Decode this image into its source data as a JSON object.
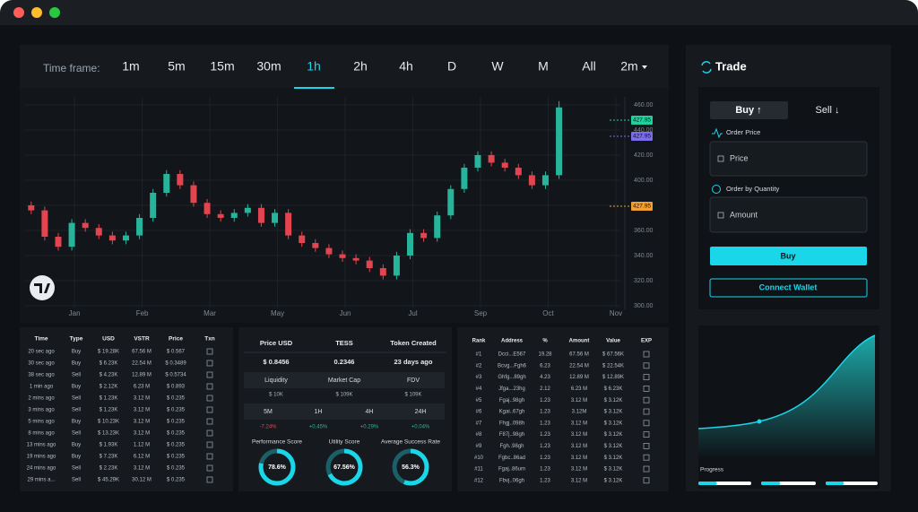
{
  "toolbar": {
    "label": "Time frame:",
    "timeframes": [
      "1m",
      "5m",
      "15m",
      "30m",
      "1h",
      "2h",
      "4h",
      "D",
      "W",
      "M",
      "All",
      "2m"
    ]
  },
  "chart_data": {
    "type": "candlestick",
    "x": [
      -0.64,
      -0.44,
      -0.24,
      -0.04,
      0.16,
      0.36,
      0.56,
      0.76,
      0.96,
      1.16,
      1.36,
      1.56,
      1.76,
      1.96,
      2.16,
      2.36,
      2.56,
      2.76,
      2.96,
      3.16,
      3.36,
      3.56,
      3.76,
      3.96,
      4.16,
      4.36,
      4.56,
      4.76,
      4.96,
      5.16,
      5.36,
      5.56,
      5.76,
      5.96,
      6.16,
      6.36,
      6.56,
      6.76,
      6.96,
      7.16
    ],
    "open": [
      380,
      376,
      355,
      347,
      366,
      362,
      356,
      352,
      356,
      370,
      390,
      405,
      396,
      382,
      373,
      370,
      374,
      378,
      366,
      374,
      356,
      350,
      346,
      341,
      338,
      336,
      330,
      324,
      340,
      358,
      354,
      372,
      393,
      410,
      420,
      414,
      410,
      404,
      396,
      404
    ],
    "high": [
      383,
      379,
      358,
      369,
      369,
      365,
      359,
      359,
      373,
      393,
      408,
      408,
      399,
      385,
      376,
      377,
      381,
      381,
      377,
      377,
      359,
      353,
      349,
      344,
      341,
      339,
      333,
      343,
      361,
      361,
      375,
      396,
      413,
      423,
      423,
      417,
      413,
      407,
      407,
      463
    ],
    "low": [
      373,
      352,
      344,
      344,
      359,
      353,
      349,
      349,
      353,
      367,
      387,
      393,
      379,
      370,
      367,
      367,
      371,
      363,
      363,
      353,
      347,
      343,
      338,
      335,
      333,
      327,
      321,
      321,
      337,
      351,
      351,
      369,
      390,
      407,
      411,
      407,
      401,
      393,
      393,
      401
    ],
    "close": [
      376,
      355,
      347,
      366,
      362,
      356,
      352,
      356,
      370,
      390,
      405,
      396,
      382,
      373,
      370,
      374,
      378,
      366,
      374,
      356,
      350,
      346,
      341,
      338,
      336,
      330,
      324,
      340,
      358,
      354,
      372,
      393,
      410,
      420,
      414,
      410,
      404,
      396,
      404,
      458
    ],
    "up_color": "#26b59b",
    "down_color": "#e2454f",
    "xlim": [
      -0.73,
      8.04
    ],
    "xticks": [
      {
        "value": 0,
        "label": "Jan"
      },
      {
        "value": 1,
        "label": "Feb"
      },
      {
        "value": 2,
        "label": "Mar"
      },
      {
        "value": 3,
        "label": "May"
      },
      {
        "value": 4,
        "label": "Jun"
      },
      {
        "value": 5,
        "label": "Jul"
      },
      {
        "value": 6,
        "label": "Sep"
      },
      {
        "value": 7,
        "label": "Oct"
      },
      {
        "value": 8,
        "label": "Nov"
      }
    ],
    "ylim": [
      300,
      460
    ],
    "yticks": [
      {
        "value": 300,
        "label": "300.00"
      },
      {
        "value": 320,
        "label": "320.00"
      },
      {
        "value": 340,
        "label": "340.00"
      },
      {
        "value": 360,
        "label": "360.00"
      },
      {
        "value": 380,
        "label": "380.00"
      },
      {
        "value": 400,
        "label": "400.00"
      },
      {
        "value": 420,
        "label": "420.00"
      },
      {
        "value": 440,
        "label": "440.00"
      },
      {
        "value": 460,
        "label": "460.00"
      }
    ],
    "grid": true,
    "price_tags": [
      {
        "label": "427.95",
        "color": "#1fd19f"
      },
      {
        "label": "427.95",
        "color": "#7b6ee8"
      },
      {
        "label": "427.95",
        "color": "#f0a030"
      }
    ]
  },
  "trades_table": {
    "columns": [
      "Time",
      "Type",
      "USD",
      "VSTR",
      "Price",
      "Txn"
    ],
    "rows": [
      [
        "20 sec ago",
        "Buy",
        "$ 19.28K",
        "67.56 M",
        "$ 0.567"
      ],
      [
        "30 sec ago",
        "Buy",
        "$ 6.23K",
        "22.54 M",
        "$ 0.3489"
      ],
      [
        "38 sec ago",
        "Sell",
        "$ 4.23K",
        "12.89 M",
        "$ 0.5734"
      ],
      [
        "1 min ago",
        "Buy",
        "$ 2.12K",
        "6.23 M",
        "$ 0.893"
      ],
      [
        "2 mins ago",
        "Sell",
        "$ 1.23K",
        "3.12 M",
        "$ 0.235"
      ],
      [
        "3 mins ago",
        "Sell",
        "$ 1.23K",
        "3.12 M",
        "$ 0.235"
      ],
      [
        "5 mins ago",
        "Buy",
        "$ 10.23K",
        "3.12 M",
        "$ 0.235"
      ],
      [
        "8 mins ago",
        "Sell",
        "$ 13.23K",
        "3.12 M",
        "$ 0.235"
      ],
      [
        "13 mins ago",
        "Buy",
        "$ 1.93K",
        "1.12 M",
        "$ 0.235"
      ],
      [
        "19 mins ago",
        "Buy",
        "$ 7.23K",
        "6.12 M",
        "$ 0.235"
      ],
      [
        "24 mins ago",
        "Sell",
        "$ 2.23K",
        "3.12 M",
        "$ 0.235"
      ],
      [
        "29 mins a...",
        "Sell",
        "$ 45.29K",
        "30.12 M",
        "$ 0.235"
      ]
    ]
  },
  "token_info": {
    "headers": [
      "Price USD",
      "TESS",
      "Token Created"
    ],
    "values": [
      "$ 0.8456",
      "0.2346",
      "23 days ago"
    ],
    "metrics": [
      "Liquidity",
      "Market Cap",
      "FDV"
    ],
    "metric_values": [
      "$ 10K",
      "$ 109K",
      "$ 109K"
    ],
    "periods": [
      "5M",
      "1H",
      "4H",
      "24H"
    ],
    "changes": [
      "-7.24%",
      "+0.45%",
      "+0.29%",
      "+0.04%"
    ],
    "gauges": [
      {
        "label": "Performance Score",
        "value": 78.6,
        "value_label": "78.6%"
      },
      {
        "label": "Utility Score",
        "value": 67.56,
        "value_label": "67.56%"
      },
      {
        "label": "Average Success Rate",
        "value": 56.3,
        "value_label": "56.3%"
      }
    ]
  },
  "holders_table": {
    "columns": [
      "Rank",
      "Address",
      "%",
      "Amount",
      "Value",
      "EXP"
    ],
    "rows": [
      [
        "#1",
        "Dcci...E567",
        "19.28",
        "67.56 M",
        "$ 67.56K"
      ],
      [
        "#2",
        "Bcvg...Fgh6",
        "6.23",
        "22.54 M",
        "$ 22.54K"
      ],
      [
        "#3",
        "Ghfg...89gh",
        "4.23",
        "12.89 M",
        "$ 12.89K"
      ],
      [
        "#4",
        "Jfga...23hg",
        "2.12",
        "6.23 M",
        "$ 6.23K"
      ],
      [
        "#5",
        "Fgaj..98gh",
        "1.23",
        "3.12 M",
        "$ 3.12K"
      ],
      [
        "#6",
        "Kgai..67gh",
        "1.23",
        "3.12M",
        "$ 3.12K"
      ],
      [
        "#7",
        "Fhgj..098h",
        "1.23",
        "3.12 M",
        "$ 3.12K"
      ],
      [
        "#8",
        "F87j..98gh",
        "1.23",
        "3.12 M",
        "$ 3.12K"
      ],
      [
        "#9",
        "Fgh..98gh",
        "1.23",
        "3.12 M",
        "$ 3.12K"
      ],
      [
        "#10",
        "Fgbc..86ad",
        "1.23",
        "3.12 M",
        "$ 3.12K"
      ],
      [
        "#11",
        "Fgaj..86um",
        "1.23",
        "3.12 M",
        "$ 3.12K"
      ],
      [
        "#12",
        "Fbvj..06gh",
        "1.23",
        "3.12 M",
        "$ 3.12K"
      ]
    ]
  },
  "trade_panel": {
    "title": "Trade",
    "buy_tab": "Buy ↑",
    "sell_tab": "Sell ↓",
    "order_price": "Order Price",
    "price_placeholder": "Price",
    "order_quantity": "Order by Quantity",
    "amount_placeholder": "Amount",
    "buy_button": "Buy",
    "connect_button": "Connect Wallet",
    "progress_label": "Progress"
  }
}
